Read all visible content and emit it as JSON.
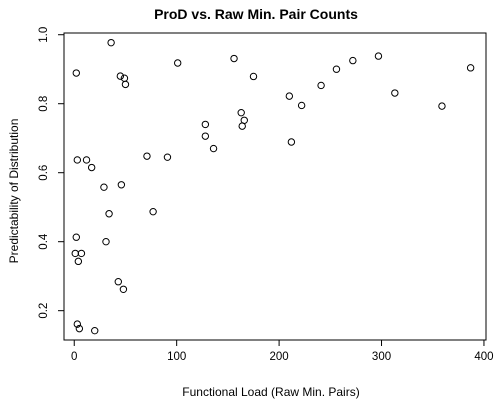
{
  "chart_data": {
    "type": "scatter",
    "title": "ProD vs. Raw Min. Pair Counts",
    "xlabel": "Functional Load (Raw Min. Pairs)",
    "ylabel": "Predictability of Distribution",
    "xlim": [
      -10,
      402
    ],
    "ylim": [
      0.115,
      1.005
    ],
    "x_ticks": [
      0,
      100,
      200,
      300,
      400
    ],
    "x_tick_labels": [
      "0",
      "100",
      "200",
      "300",
      "400"
    ],
    "y_ticks": [
      0.2,
      0.4,
      0.6,
      0.8,
      1.0
    ],
    "y_tick_labels": [
      "0.2",
      "0.4",
      "0.6",
      "0.8",
      "1.0"
    ],
    "grid": false,
    "legend": "none",
    "marker": "open-circle",
    "x": [
      2,
      36,
      45,
      49,
      50,
      101,
      156,
      175,
      297,
      387,
      256,
      272,
      241,
      210,
      222,
      313,
      359,
      163,
      166,
      164,
      128,
      128,
      136,
      212,
      3,
      12,
      17,
      71,
      91,
      29,
      34,
      46,
      77,
      2,
      1,
      4,
      7,
      31,
      43,
      48,
      3,
      5,
      20
    ],
    "y": [
      0.889,
      0.977,
      0.88,
      0.874,
      0.856,
      0.918,
      0.931,
      0.879,
      0.938,
      0.904,
      0.9,
      0.925,
      0.853,
      0.822,
      0.795,
      0.831,
      0.793,
      0.774,
      0.752,
      0.735,
      0.74,
      0.706,
      0.67,
      0.689,
      0.637,
      0.637,
      0.615,
      0.648,
      0.645,
      0.558,
      0.481,
      0.565,
      0.487,
      0.413,
      0.366,
      0.343,
      0.366,
      0.4,
      0.284,
      0.262,
      0.161,
      0.148,
      0.142
    ]
  }
}
